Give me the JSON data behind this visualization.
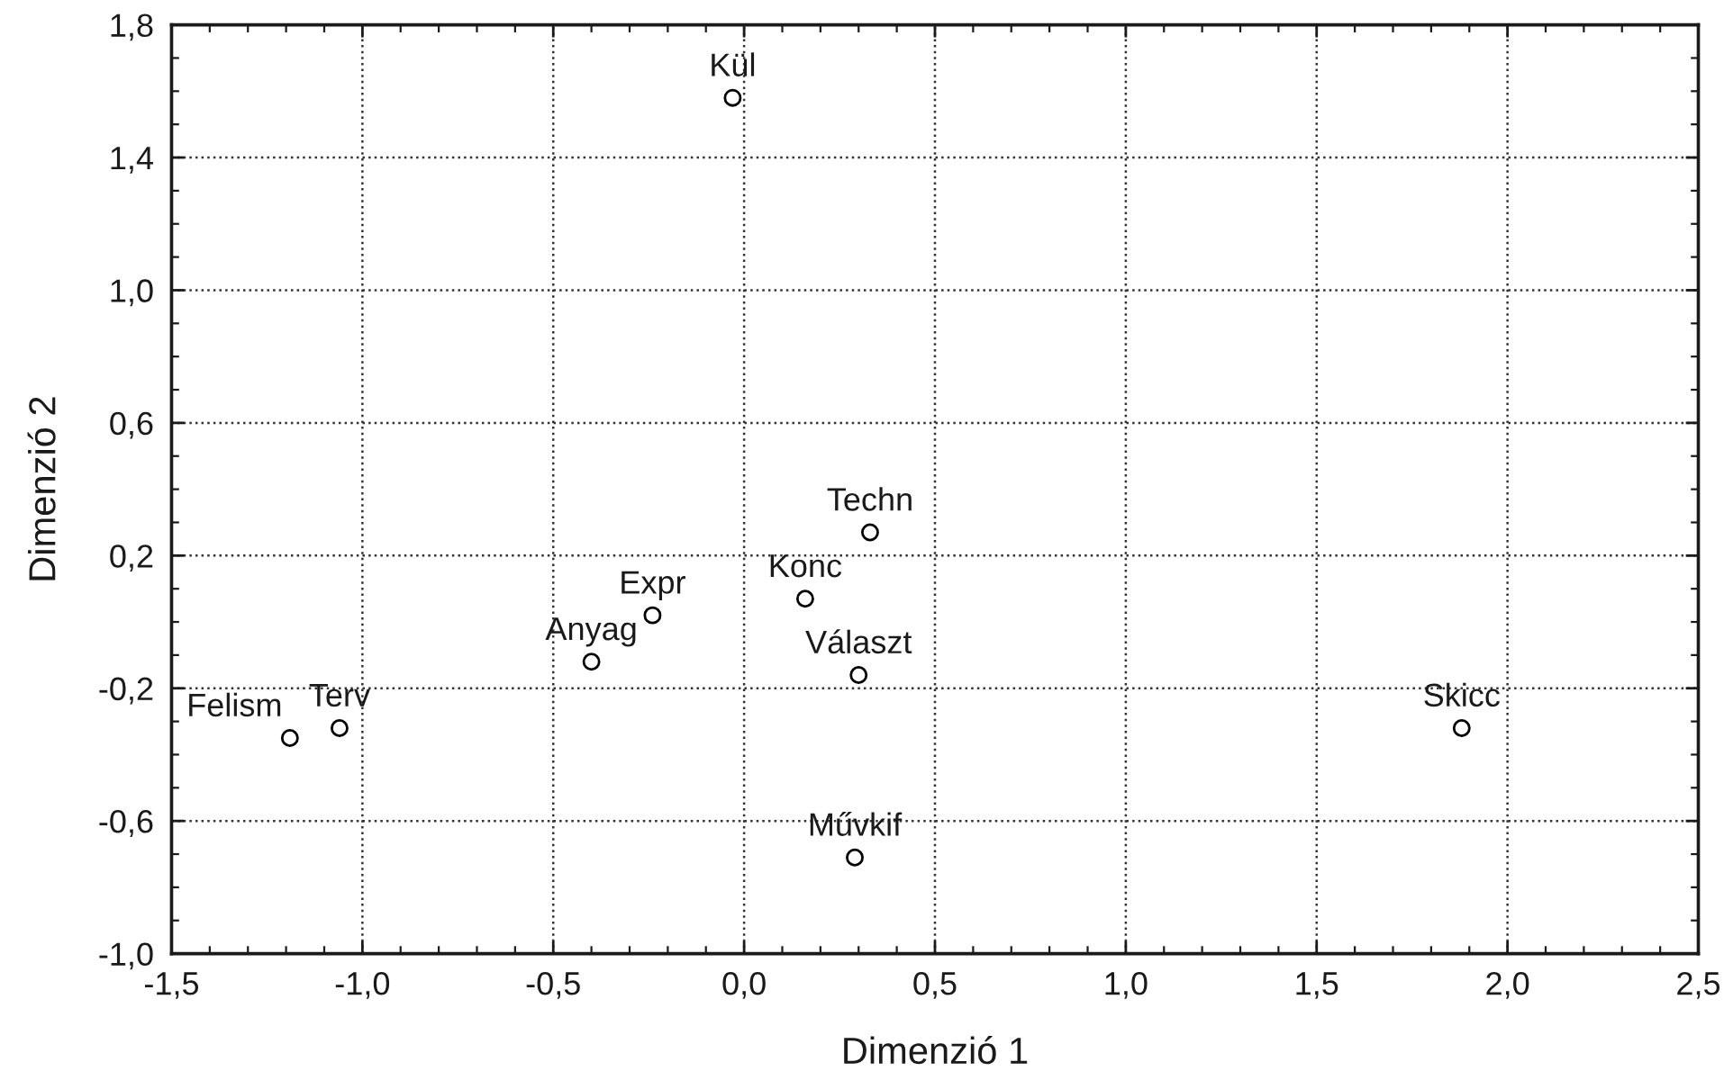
{
  "chart_data": {
    "type": "scatter",
    "xlabel": "Dimenzió 1",
    "ylabel": "Dimenzió 2",
    "x": [
      -1.19,
      -1.06,
      -0.4,
      -0.24,
      -0.03,
      0.16,
      0.29,
      0.3,
      0.33,
      1.88
    ],
    "values": [
      -0.35,
      -0.32,
      -0.12,
      0.02,
      1.58,
      0.07,
      -0.71,
      -0.16,
      0.27,
      -0.32
    ],
    "color": "#000000",
    "marker": "circle",
    "grid": true,
    "xlim": [
      -1.5,
      2.5
    ],
    "xticks": [
      {
        "value": -1.5,
        "label": "-1,5"
      },
      {
        "value": -1.0,
        "label": "-1,0"
      },
      {
        "value": -0.5,
        "label": "-0,5"
      },
      {
        "value": 0.0,
        "label": "0,0"
      },
      {
        "value": 0.5,
        "label": "0,5"
      },
      {
        "value": 1.0,
        "label": "1,0"
      },
      {
        "value": 1.5,
        "label": "1,5"
      },
      {
        "value": 2.0,
        "label": "2,0"
      },
      {
        "value": 2.5,
        "label": "2,5"
      }
    ],
    "ylim": [
      -1.0,
      1.8
    ],
    "yticks": [
      {
        "value": -1.0,
        "label": "-1,0"
      },
      {
        "value": -0.6,
        "label": "-0,6"
      },
      {
        "value": -0.2,
        "label": "-0,2"
      },
      {
        "value": 0.2,
        "label": "0,2"
      },
      {
        "value": 0.6,
        "label": "0,6"
      },
      {
        "value": 1.0,
        "label": "1,0"
      },
      {
        "value": 1.4,
        "label": "1,4"
      },
      {
        "value": 1.8,
        "label": "1,8"
      }
    ],
    "annotations": [
      {
        "text": "Felism",
        "x": -1.19,
        "y": -0.35
      },
      {
        "text": "Terv",
        "x": -1.06,
        "y": -0.32
      },
      {
        "text": "Anyag",
        "x": -0.4,
        "y": -0.12
      },
      {
        "text": "Expr",
        "x": -0.24,
        "y": 0.02
      },
      {
        "text": "Kül",
        "x": -0.03,
        "y": 1.58
      },
      {
        "text": "Konc",
        "x": 0.16,
        "y": 0.07
      },
      {
        "text": "Művkif",
        "x": 0.29,
        "y": -0.71
      },
      {
        "text": "Választ",
        "x": 0.3,
        "y": -0.16
      },
      {
        "text": "Techn",
        "x": 0.33,
        "y": 0.27
      },
      {
        "text": "Skicc",
        "x": 1.88,
        "y": -0.32
      }
    ]
  }
}
